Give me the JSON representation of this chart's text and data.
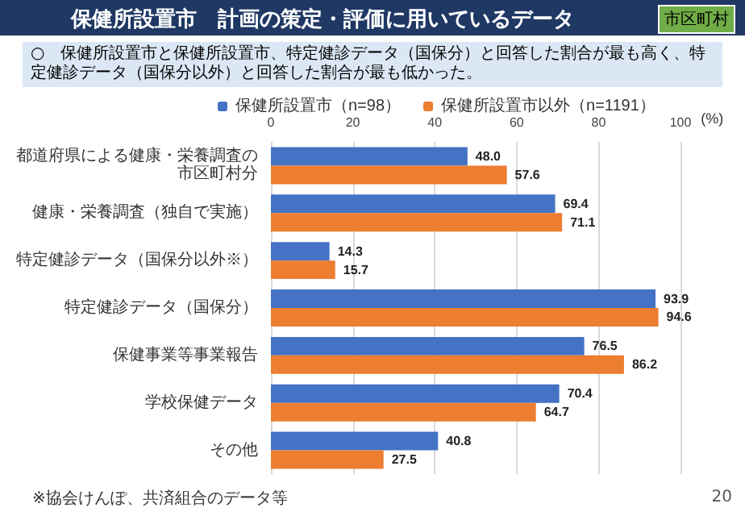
{
  "chart_data": {
    "type": "bar",
    "orientation": "horizontal",
    "title": "保健所設置市　計画の策定・評価に用いているデータ",
    "subtitle": "○　保健所設置市と保健所設置市、特定健診データ（国保分）と回答した割合が最も高く、特定健診データ（国保分以外）と回答した割合が最も低かった。",
    "xlabel": "(%)",
    "categories": [
      "都道府県による健康・栄養調査の市区町村分",
      "健康・栄養調査（独自で実施）",
      "特定健診データ（国保分以外※）",
      "特定健診データ（国保分）",
      "保健事業等事業報告",
      "学校保健データ",
      "その他"
    ],
    "series": [
      {
        "name": "保健所設置市（n=98）",
        "color": "#4472c4",
        "values": [
          48.0,
          69.4,
          14.3,
          93.9,
          76.5,
          70.4,
          40.8
        ],
        "value_labels": [
          "48.0",
          "69.4",
          "14.3",
          "93.9",
          "76.5",
          "70.4",
          "40.8"
        ]
      },
      {
        "name": "保健所設置市以外（n=1191）",
        "color": "#ed7d31",
        "values": [
          57.6,
          71.1,
          15.7,
          94.6,
          86.2,
          64.7,
          27.5
        ],
        "value_labels": [
          "57.6",
          "71.1",
          "15.7",
          "94.6",
          "86.2",
          "64.7",
          "27.5"
        ]
      }
    ],
    "xlim": [
      0,
      100
    ],
    "xticks": [
      0,
      20,
      40,
      60,
      80,
      100
    ],
    "grid": "x",
    "legend": "top",
    "annotations": [
      "市区町村",
      "※協会けんぽ、共済組合のデータ等",
      "20"
    ]
  }
}
